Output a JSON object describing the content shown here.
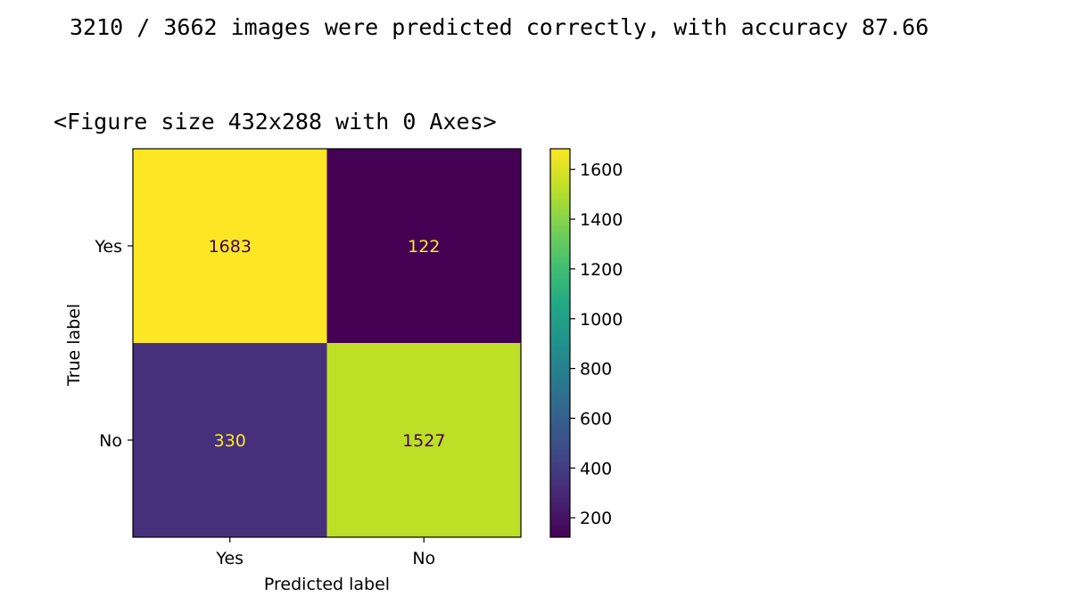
{
  "output": {
    "accuracy_text": "3210 / 3662 images were predicted correctly, with accuracy 87.66",
    "figure_text": "<Figure size 432x288 with 0 Axes>"
  },
  "chart_data": {
    "type": "heatmap",
    "title": "",
    "xlabel": "Predicted label",
    "ylabel": "True label",
    "x_categories": [
      "Yes",
      "No"
    ],
    "y_categories": [
      "Yes",
      "No"
    ],
    "values": [
      [
        1683,
        122
      ],
      [
        330,
        1527
      ]
    ],
    "colormap": "viridis",
    "colorbar": {
      "ticks": [
        200,
        400,
        600,
        800,
        1000,
        1200,
        1400,
        1600
      ],
      "range": [
        122,
        1683
      ]
    },
    "grid": false,
    "colors": {
      "cell_high": "#fde725",
      "cell_low": "#440154",
      "text_on_dark": "#fde725",
      "text_on_light": "#440154"
    }
  }
}
